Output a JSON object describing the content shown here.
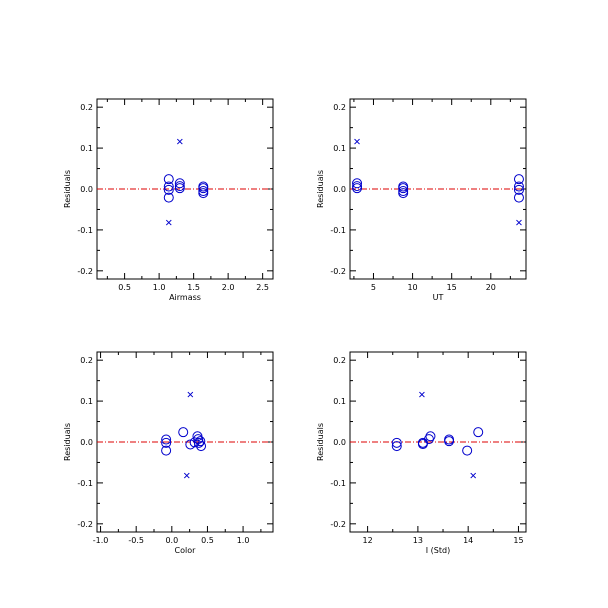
{
  "chart_data": [
    {
      "type": "scatter",
      "xlabel": "Airmass",
      "ylabel": "Residuals",
      "xlim": [
        0.1,
        2.65
      ],
      "ylim": [
        -0.22,
        0.22
      ],
      "xticks": [
        "0.5",
        "1.0",
        "1.5",
        "2.0",
        "2.5"
      ],
      "xtick_values": [
        0.5,
        1.0,
        1.5,
        2.0,
        2.5
      ],
      "yticks": [
        "-0.2",
        "-0.1",
        "0.0",
        "0.1",
        "0.2"
      ],
      "ytick_values": [
        -0.2,
        -0.1,
        0.0,
        0.1,
        0.2
      ],
      "reference_line_y": 0.0,
      "series": [
        {
          "marker": "circle",
          "x": [
            1.14,
            1.14,
            1.14,
            1.14,
            1.3,
            1.3,
            1.3,
            1.64,
            1.64,
            1.64,
            1.64
          ],
          "y": [
            0.024,
            0.006,
            -0.002,
            -0.021,
            0.014,
            0.007,
            0.002,
            0.006,
            0.002,
            -0.005,
            -0.01
          ]
        },
        {
          "marker": "cross",
          "x": [
            1.3,
            1.14
          ],
          "y": [
            0.116,
            -0.082
          ]
        }
      ]
    },
    {
      "type": "scatter",
      "xlabel": "UT",
      "ylabel": "Residuals",
      "xlim": [
        2.0,
        24.5
      ],
      "ylim": [
        -0.22,
        0.22
      ],
      "xticks": [
        "5",
        "10",
        "15",
        "20"
      ],
      "xtick_values": [
        5,
        10,
        15,
        20
      ],
      "yticks": [
        "-0.2",
        "-0.1",
        "0.0",
        "0.1",
        "0.2"
      ],
      "ytick_values": [
        -0.2,
        -0.1,
        0.0,
        0.1,
        0.2
      ],
      "reference_line_y": 0.0,
      "series": [
        {
          "marker": "circle",
          "x": [
            2.9,
            2.9,
            2.9,
            8.8,
            8.8,
            8.8,
            8.8,
            23.6,
            23.6,
            23.6,
            23.6
          ],
          "y": [
            0.014,
            0.007,
            0.002,
            0.006,
            0.002,
            -0.005,
            -0.01,
            0.024,
            0.006,
            -0.002,
            -0.021
          ]
        },
        {
          "marker": "cross",
          "x": [
            2.9,
            23.6
          ],
          "y": [
            0.116,
            -0.082
          ]
        }
      ]
    },
    {
      "type": "scatter",
      "xlabel": "Color",
      "ylabel": "Residuals",
      "xlim": [
        -1.05,
        1.42
      ],
      "ylim": [
        -0.22,
        0.22
      ],
      "xticks": [
        "-1.0",
        "-0.5",
        "0.0",
        "0.5",
        "1.0"
      ],
      "xtick_values": [
        -1.0,
        -0.5,
        0.0,
        0.5,
        1.0
      ],
      "yticks": [
        "-0.2",
        "-0.1",
        "0.0",
        "0.1",
        "0.2"
      ],
      "ytick_values": [
        -0.2,
        -0.1,
        0.0,
        0.1,
        0.2
      ],
      "reference_line_y": 0.0,
      "series": [
        {
          "marker": "circle",
          "x": [
            -0.08,
            -0.08,
            -0.08,
            0.16,
            0.26,
            0.32,
            0.36,
            0.37,
            0.38,
            0.4,
            0.41
          ],
          "y": [
            0.006,
            -0.002,
            -0.021,
            0.024,
            -0.006,
            -0.001,
            0.014,
            0.007,
            -0.002,
            0.002,
            -0.01
          ]
        },
        {
          "marker": "cross",
          "x": [
            0.26,
            0.21
          ],
          "y": [
            0.116,
            -0.082
          ]
        }
      ]
    },
    {
      "type": "scatter",
      "xlabel": "I (Std)",
      "ylabel": "Residuals",
      "xlim": [
        11.65,
        15.15
      ],
      "ylim": [
        -0.22,
        0.22
      ],
      "xticks": [
        "12",
        "13",
        "14",
        "15"
      ],
      "xtick_values": [
        12,
        13,
        14,
        15
      ],
      "yticks": [
        "-0.2",
        "-0.1",
        "0.0",
        "0.1",
        "0.2"
      ],
      "ytick_values": [
        -0.2,
        -0.1,
        0.0,
        0.1,
        0.2
      ],
      "reference_line_y": 0.0,
      "series": [
        {
          "marker": "circle",
          "x": [
            12.58,
            12.58,
            13.1,
            13.1,
            13.22,
            13.25,
            13.62,
            13.62,
            13.98,
            14.2
          ],
          "y": [
            -0.002,
            -0.01,
            -0.002,
            -0.005,
            0.007,
            0.014,
            0.006,
            0.002,
            -0.021,
            0.024
          ]
        },
        {
          "marker": "cross",
          "x": [
            13.08,
            14.1
          ],
          "y": [
            0.116,
            -0.082
          ]
        }
      ]
    }
  ],
  "colors": {
    "marker": "#0000cc",
    "reference_line": "#dd0000",
    "axes": "#000000",
    "background": "#ffffff"
  }
}
